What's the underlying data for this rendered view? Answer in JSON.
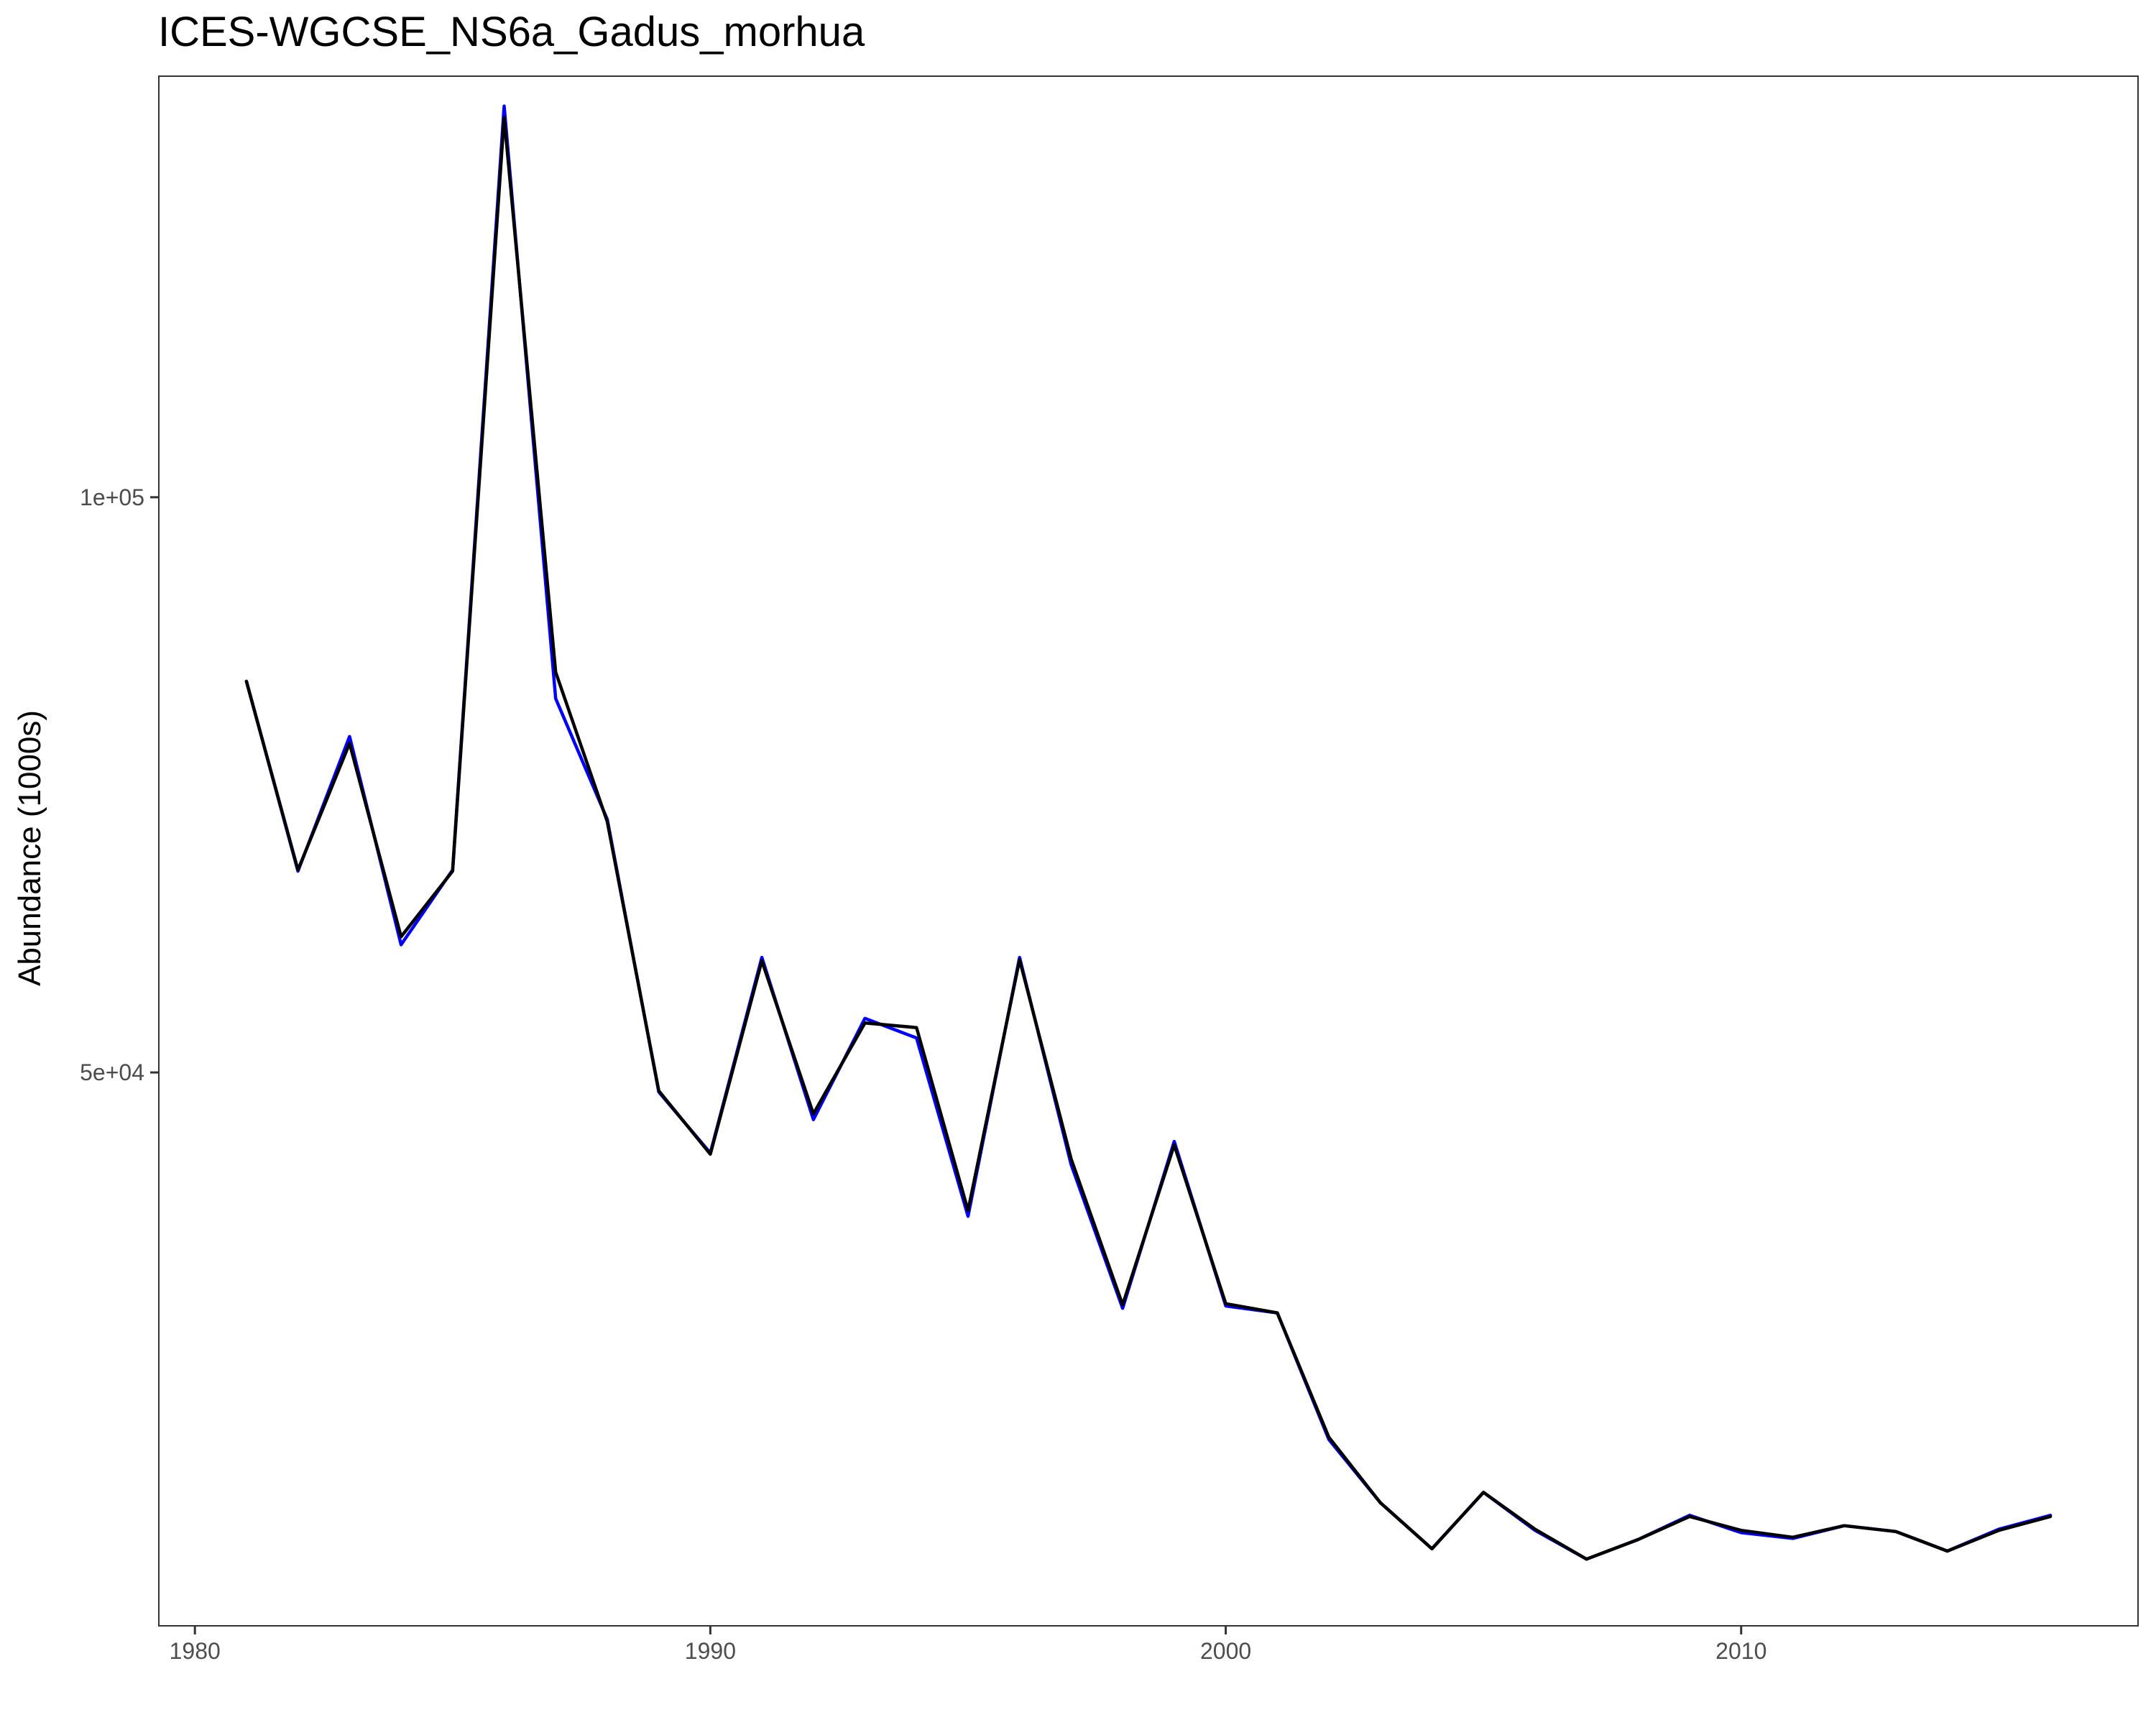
{
  "chart_data": {
    "type": "line",
    "title": "ICES-WGCSE_NS6a_Gadus_morhua",
    "xlabel": "",
    "ylabel": "Abundance (1000s)",
    "xlim": [
      1979.3,
      2017.7
    ],
    "ylim": [
      1900,
      136600
    ],
    "x_ticks": [
      1980,
      1990,
      2000,
      2010
    ],
    "x_tick_labels": [
      "1980",
      "1990",
      "2000",
      "2010"
    ],
    "y_ticks": [
      50000,
      100000
    ],
    "y_tick_labels": [
      "5e+04",
      "1e+05"
    ],
    "grid": false,
    "legend": "none",
    "x": [
      1981,
      1982,
      1983,
      1984,
      1985,
      1986,
      1987,
      1988,
      1989,
      1990,
      1991,
      1992,
      1993,
      1994,
      1995,
      1996,
      1997,
      1998,
      1999,
      2000,
      2001,
      2002,
      2003,
      2004,
      2005,
      2006,
      2007,
      2008,
      2009,
      2010,
      2011,
      2012,
      2013,
      2014,
      2015,
      2016
    ],
    "series": [
      {
        "color": "#0000ff",
        "values": [
          84000,
          67500,
          79200,
          61100,
          67600,
          134000,
          82500,
          72000,
          48300,
          43000,
          60000,
          45900,
          54700,
          53000,
          37500,
          60000,
          42000,
          29500,
          44000,
          29700,
          29100,
          18100,
          12600,
          8600,
          13500,
          10200,
          7700,
          9400,
          11500,
          10000,
          9500,
          10600,
          10100,
          8400,
          10300,
          11500
        ]
      },
      {
        "color": "#000000",
        "values": [
          84000,
          67600,
          78600,
          61800,
          67500,
          133000,
          84800,
          71800,
          48400,
          42900,
          59700,
          46400,
          54300,
          53900,
          38000,
          59800,
          42500,
          29800,
          43700,
          29900,
          29100,
          18300,
          12600,
          8600,
          13500,
          10300,
          7700,
          9400,
          11400,
          10200,
          9600,
          10600,
          10100,
          8400,
          10200,
          11400
        ]
      }
    ]
  }
}
